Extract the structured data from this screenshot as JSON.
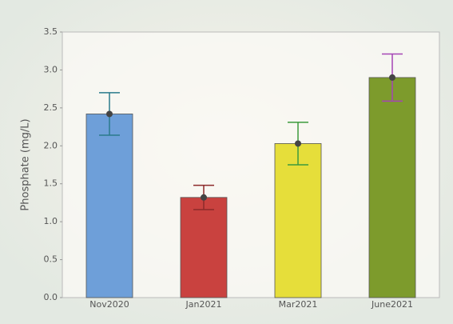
{
  "chart_data": {
    "type": "bar",
    "ylabel": "Phosphate (mg/L)",
    "categories": [
      "Nov2020",
      "Jan2021",
      "Mar2021",
      "June2021"
    ],
    "values": [
      2.42,
      1.32,
      2.03,
      2.9
    ],
    "errors": [
      0.28,
      0.16,
      0.28,
      0.31
    ],
    "colors": [
      "#6e9fd9",
      "#c9423f",
      "#e6de3a",
      "#7d9b2c"
    ],
    "error_colors": [
      "#2a7b8c",
      "#8c2a2a",
      "#3c9a3c",
      "#a544b5"
    ],
    "ylim": [
      0,
      3.5
    ],
    "yticks": [
      {
        "value": 0,
        "label": "0.0"
      },
      0.5,
      {
        "value": 1,
        "label": "1.0"
      },
      1.5,
      {
        "value": 2,
        "label": "2.0"
      },
      2.5,
      {
        "value": 3,
        "label": "3.0"
      },
      3.5
    ]
  }
}
